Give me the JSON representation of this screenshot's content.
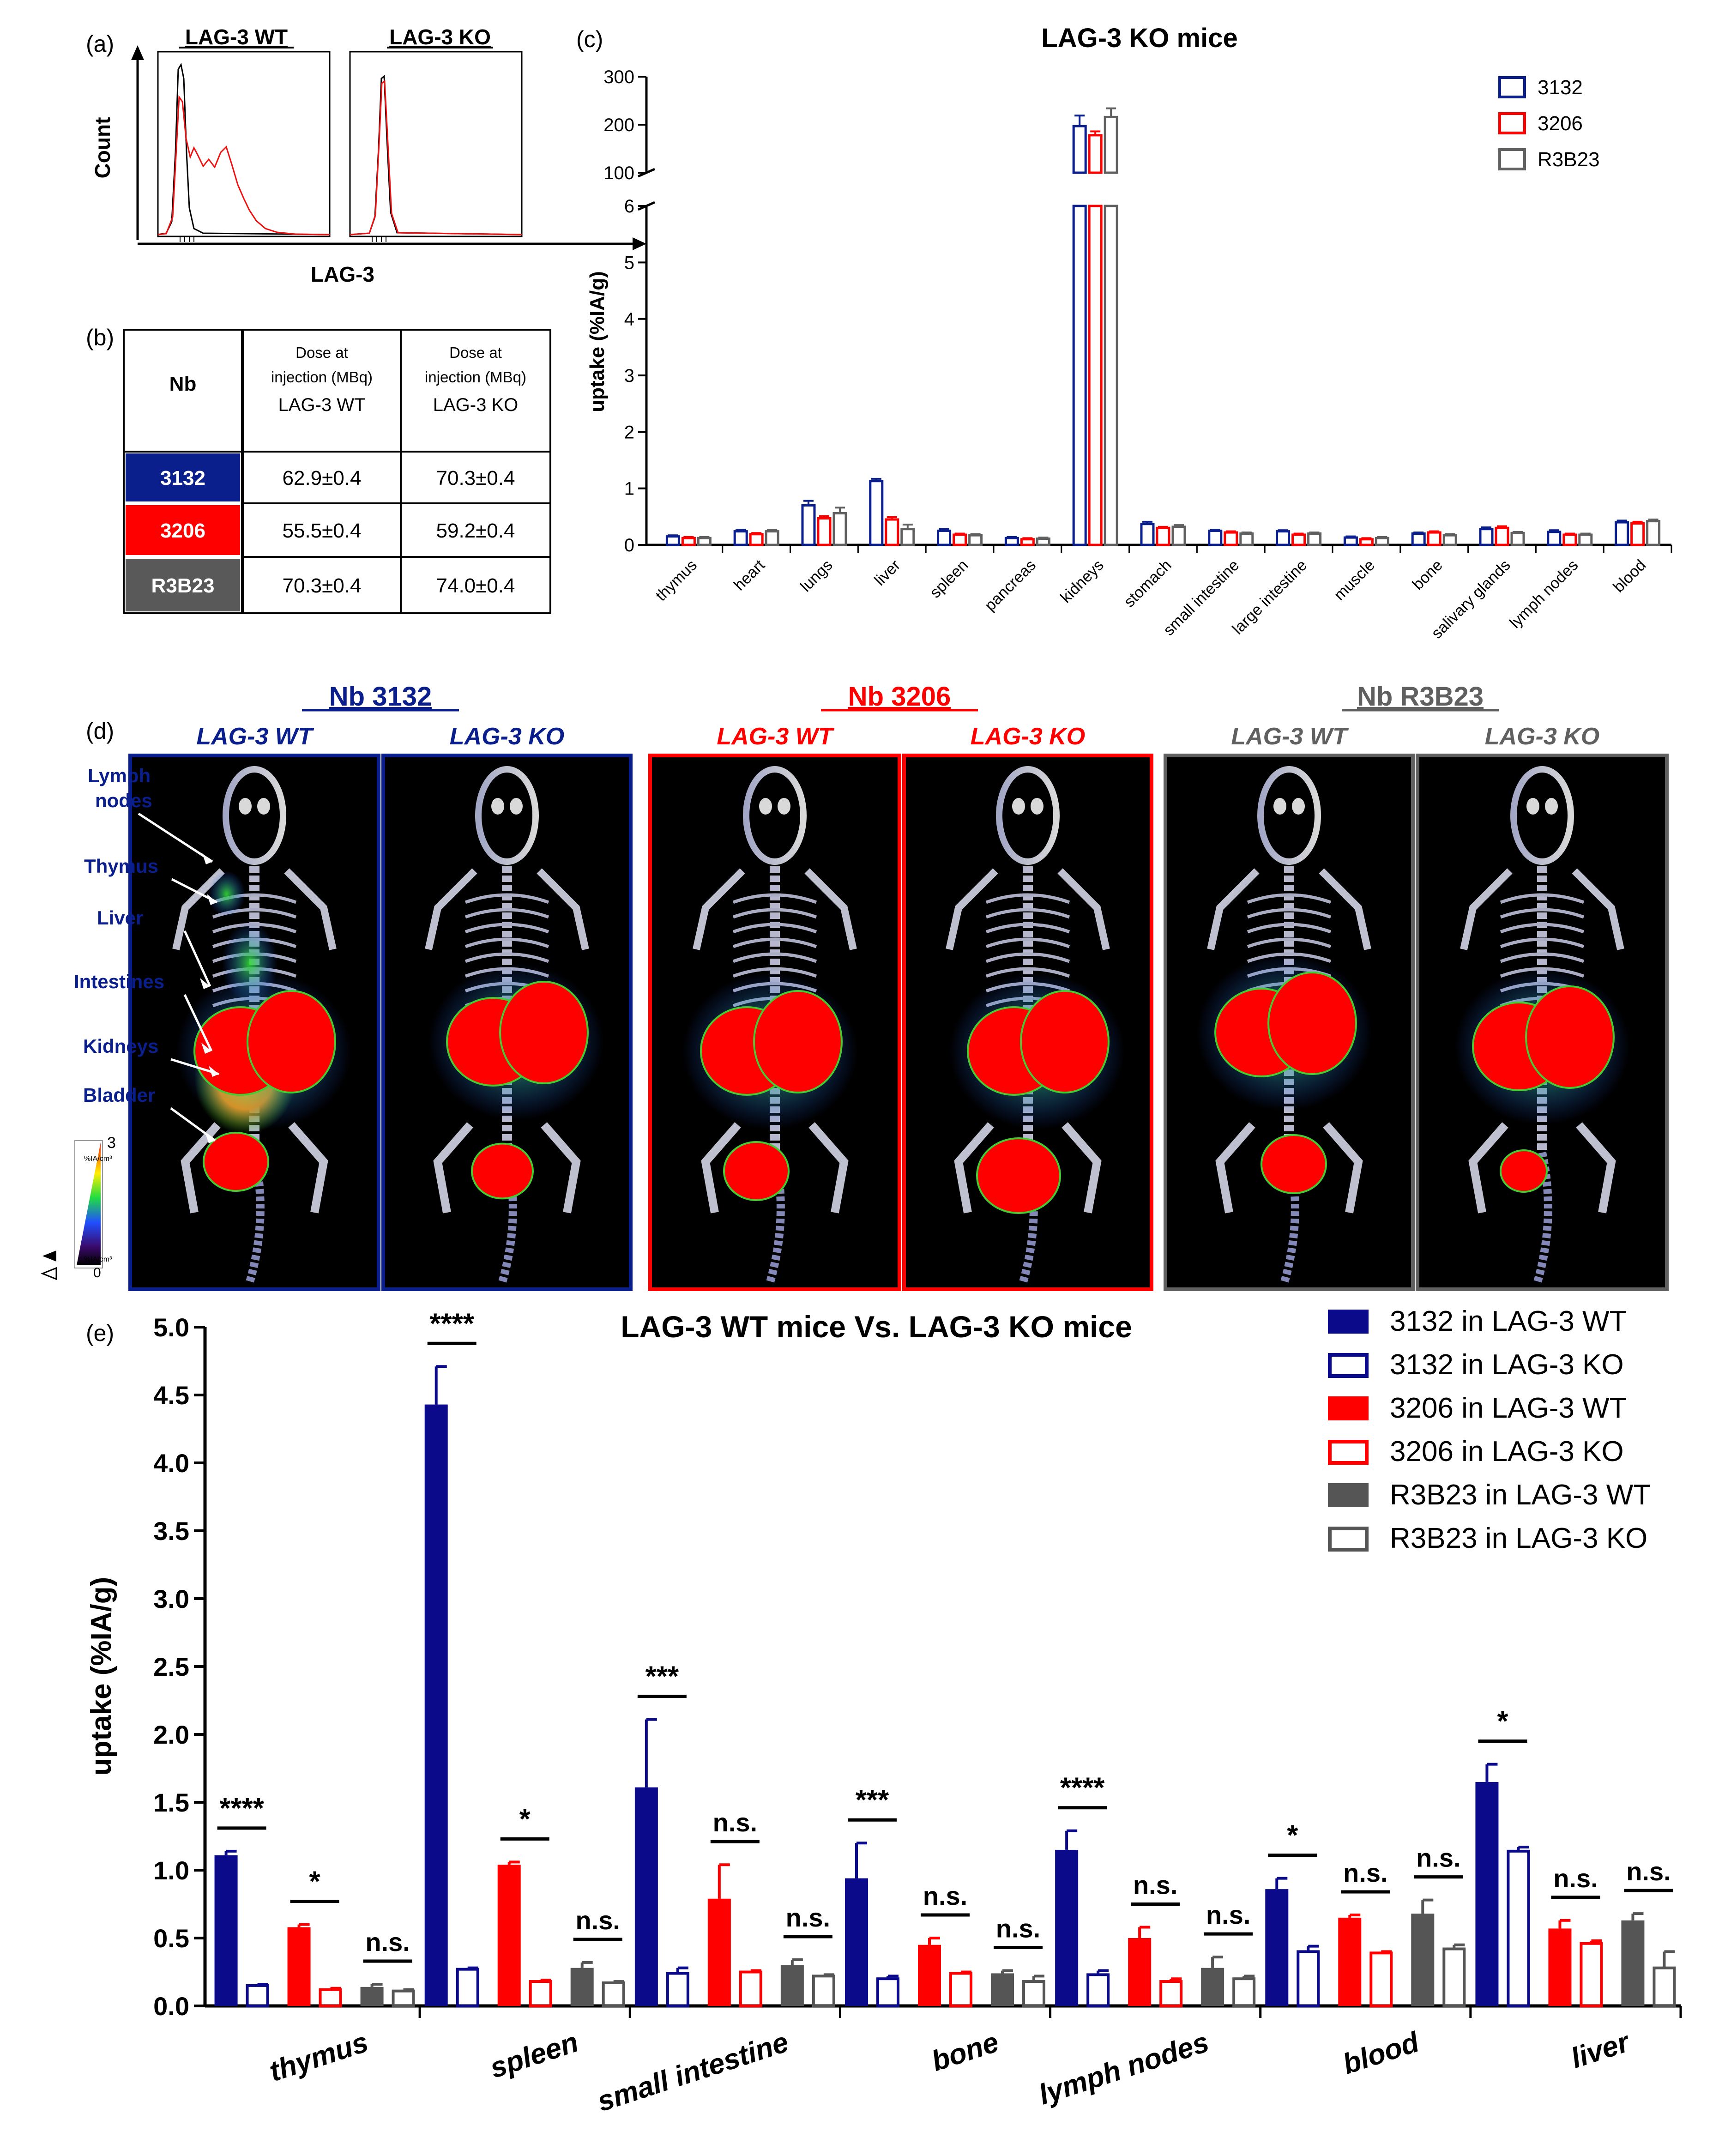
{
  "panel_labels": {
    "a": "(a)",
    "b": "(b)",
    "c": "(c)",
    "d": "(d)",
    "e": "(e)"
  },
  "colors": {
    "navy": "#0a0a8a",
    "red": "#ff0000",
    "gray": "#555555",
    "black": "#000000"
  },
  "panel_a": {
    "titles": [
      "LAG-3 WT",
      "LAG-3 KO"
    ],
    "ylabel": "Count",
    "xlabel": "LAG-3"
  },
  "table_b": {
    "headers": [
      "Nb",
      "Dose at injection (MBq) LAG-3 WT",
      "Dose at injection (MBq) LAG-3 KO"
    ],
    "header_small": "Dose at injection (MBq)",
    "header_sub": [
      "LAG-3 WT",
      "LAG-3 KO"
    ],
    "rows": [
      {
        "nb": "3132",
        "wt": "62.9±0.4",
        "ko": "70.3±0.4",
        "color": "#0a1e8c"
      },
      {
        "nb": "3206",
        "wt": "55.5±0.4",
        "ko": "59.2±0.4",
        "color": "#ff0000"
      },
      {
        "nb": "R3B23",
        "wt": "70.3±0.4",
        "ko": "74.0±0.4",
        "color": "#595959"
      }
    ]
  },
  "panel_d": {
    "groups": [
      {
        "title": "Nb 3132",
        "color": "#0a1e8c",
        "subs": [
          "LAG-3 WT",
          "LAG-3 KO"
        ]
      },
      {
        "title": "Nb 3206",
        "color": "#ff0000",
        "subs": [
          "LAG-3 WT",
          "LAG-3 KO"
        ]
      },
      {
        "title": "Nb R3B23",
        "color": "#606060",
        "subs": [
          "LAG-3 WT",
          "LAG-3 KO"
        ]
      }
    ],
    "organ_labels": [
      "Lymph nodes",
      "Thymus",
      "Liver",
      "Intestines",
      "Kidneys",
      "Bladder"
    ],
    "organ_lines": [
      "Lymph",
      "nodes"
    ],
    "scale": {
      "max": "3",
      "min": "0",
      "unit": "%IA/cm³"
    }
  },
  "chart_data": [
    {
      "type": "bar",
      "title": "LAG-3 KO mice",
      "ylabel": "uptake (%IA/g)",
      "xlabel": "",
      "categories": [
        "thymus",
        "heart",
        "lungs",
        "liver",
        "spleen",
        "pancreas",
        "kidneys",
        "stomach",
        "small intestine",
        "large intestine",
        "muscle",
        "bone",
        "salivary glands",
        "lymph nodes",
        "blood"
      ],
      "ylim_lower": [
        0,
        6
      ],
      "ylim_upper": [
        100,
        300
      ],
      "yticks_lower": [
        "0",
        "1",
        "2",
        "3",
        "4",
        "5",
        "6"
      ],
      "yticks_upper": [
        "100",
        "200",
        "300"
      ],
      "legend_position": "top-right",
      "series": [
        {
          "name": "3132",
          "style": "open",
          "color": "#0a1e8c",
          "values": [
            0.15,
            0.24,
            0.7,
            1.13,
            0.25,
            0.12,
            197,
            0.37,
            0.25,
            0.24,
            0.13,
            0.2,
            0.28,
            0.23,
            0.4
          ],
          "errors": [
            0.02,
            0.03,
            0.08,
            0.04,
            0.03,
            0.02,
            22,
            0.04,
            0.02,
            0.02,
            0.02,
            0.02,
            0.03,
            0.03,
            0.03
          ]
        },
        {
          "name": "3206",
          "style": "open",
          "color": "#ff0000",
          "values": [
            0.12,
            0.19,
            0.47,
            0.45,
            0.18,
            0.1,
            178,
            0.3,
            0.22,
            0.18,
            0.1,
            0.22,
            0.3,
            0.18,
            0.38
          ],
          "errors": [
            0.02,
            0.02,
            0.04,
            0.04,
            0.02,
            0.02,
            8,
            0.02,
            0.02,
            0.02,
            0.02,
            0.02,
            0.03,
            0.02,
            0.03
          ]
        },
        {
          "name": "R3B23",
          "style": "open",
          "color": "#606060",
          "values": [
            0.12,
            0.24,
            0.56,
            0.28,
            0.17,
            0.11,
            216,
            0.32,
            0.2,
            0.2,
            0.12,
            0.17,
            0.21,
            0.18,
            0.42
          ],
          "errors": [
            0.02,
            0.03,
            0.1,
            0.08,
            0.02,
            0.02,
            18,
            0.03,
            0.02,
            0.02,
            0.02,
            0.02,
            0.02,
            0.02,
            0.03
          ]
        }
      ]
    },
    {
      "type": "bar",
      "title": "LAG-3 WT mice Vs. LAG-3 KO mice",
      "ylabel": "uptake (%IA/g)",
      "xlabel": "",
      "categories": [
        "thymus",
        "spleen",
        "small intestine",
        "bone",
        "lymph nodes",
        "blood",
        "liver"
      ],
      "ylim": [
        0,
        5
      ],
      "yticks": [
        "0.0",
        "0.5",
        "1.0",
        "1.5",
        "2.0",
        "2.5",
        "3.0",
        "3.5",
        "4.0",
        "4.5",
        "5.0"
      ],
      "legend_position": "top-right",
      "series": [
        {
          "name": "3132 in LAG-3 WT",
          "style": "solid",
          "color": "#0a0a8a",
          "values": [
            1.11,
            4.43,
            1.61,
            0.94,
            1.15,
            0.86,
            1.65
          ],
          "errors": [
            0.03,
            0.28,
            0.5,
            0.26,
            0.14,
            0.08,
            0.13
          ]
        },
        {
          "name": "3132 in LAG-3 KO",
          "style": "open",
          "color": "#0a0a8a",
          "values": [
            0.15,
            0.27,
            0.24,
            0.2,
            0.23,
            0.4,
            1.14
          ],
          "errors": [
            0.01,
            0.01,
            0.04,
            0.02,
            0.03,
            0.04,
            0.03
          ]
        },
        {
          "name": "3206 in LAG-3 WT",
          "style": "solid",
          "color": "#ff0000",
          "values": [
            0.58,
            1.04,
            0.79,
            0.45,
            0.5,
            0.65,
            0.57
          ],
          "errors": [
            0.02,
            0.02,
            0.25,
            0.05,
            0.08,
            0.02,
            0.06
          ]
        },
        {
          "name": "3206 in LAG-3 KO",
          "style": "open",
          "color": "#ff0000",
          "values": [
            0.12,
            0.18,
            0.25,
            0.24,
            0.18,
            0.39,
            0.46
          ],
          "errors": [
            0.01,
            0.01,
            0.01,
            0.01,
            0.02,
            0.01,
            0.02
          ]
        },
        {
          "name": "R3B23 in LAG-3 WT",
          "style": "solid",
          "color": "#555555",
          "values": [
            0.14,
            0.28,
            0.3,
            0.24,
            0.28,
            0.68,
            0.63
          ],
          "errors": [
            0.02,
            0.04,
            0.04,
            0.02,
            0.08,
            0.1,
            0.05
          ]
        },
        {
          "name": "R3B23 in LAG-3 KO",
          "style": "open",
          "color": "#555555",
          "values": [
            0.11,
            0.17,
            0.22,
            0.18,
            0.2,
            0.42,
            0.28
          ],
          "errors": [
            0.01,
            0.01,
            0.01,
            0.04,
            0.02,
            0.03,
            0.12
          ]
        }
      ],
      "significance": [
        [
          "****",
          "*",
          "n.s."
        ],
        [
          "****",
          "*",
          "n.s."
        ],
        [
          "***",
          "n.s.",
          "n.s."
        ],
        [
          "***",
          "n.s.",
          "n.s."
        ],
        [
          "****",
          "n.s.",
          "n.s."
        ],
        [
          "*",
          "n.s.",
          "n.s."
        ],
        [
          "*",
          "n.s.",
          "n.s."
        ]
      ]
    }
  ]
}
